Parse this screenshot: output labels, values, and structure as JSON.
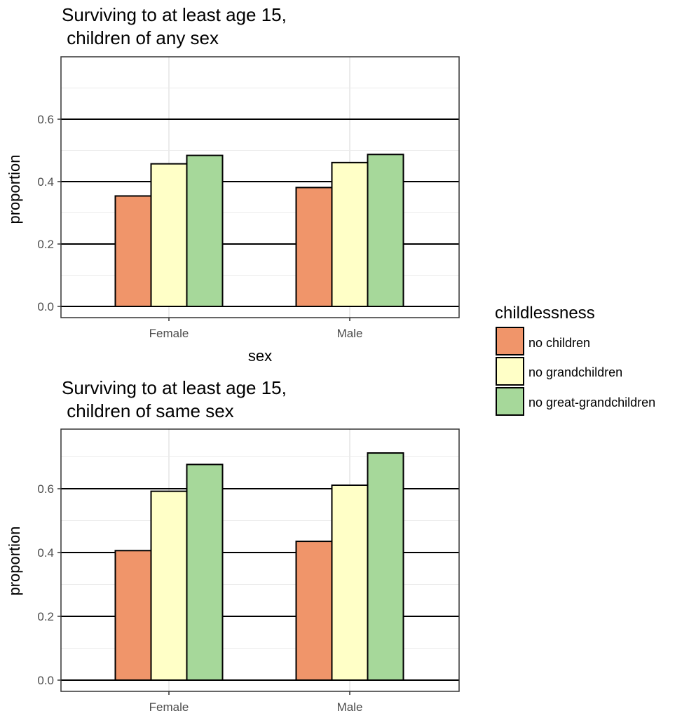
{
  "chart_data": [
    {
      "type": "bar",
      "title_lines": [
        "Surviving to at least age 15,",
        " children of any sex"
      ],
      "xlabel": "sex",
      "ylabel": "proportion",
      "categories": [
        "Female",
        "Male"
      ],
      "ylim": [
        0,
        0.76
      ],
      "yticks": [
        0.0,
        0.2,
        0.4,
        0.6
      ],
      "ytick_labels": [
        "0.0",
        "0.2",
        "0.4",
        "0.6"
      ],
      "series": [
        {
          "name": "no children",
          "values": [
            0.354,
            0.381
          ]
        },
        {
          "name": "no grandchildren",
          "values": [
            0.457,
            0.461
          ]
        },
        {
          "name": "no great-grandchildren",
          "values": [
            0.484,
            0.487
          ]
        }
      ]
    },
    {
      "type": "bar",
      "title_lines": [
        "Surviving to at least age 15,",
        " children of same sex"
      ],
      "xlabel": "",
      "ylabel": "proportion",
      "categories": [
        "Female",
        "Male"
      ],
      "ylim": [
        0,
        0.76
      ],
      "yticks": [
        0.0,
        0.2,
        0.4,
        0.6
      ],
      "ytick_labels": [
        "0.0",
        "0.2",
        "0.4",
        "0.6"
      ],
      "series": [
        {
          "name": "no children",
          "values": [
            0.406,
            0.435
          ]
        },
        {
          "name": "no grandchildren",
          "values": [
            0.592,
            0.611
          ]
        },
        {
          "name": "no great-grandchildren",
          "values": [
            0.676,
            0.712
          ]
        }
      ]
    }
  ],
  "legend": {
    "title": "childlessness",
    "entries": [
      "no children",
      "no grandchildren",
      "no great-grandchildren"
    ]
  },
  "colors": {
    "series": [
      "#f0956a",
      "#ffffc7",
      "#a6d89a"
    ],
    "bar_outline": "#000000",
    "panel_border": "#333333",
    "major_grid": "#000000",
    "minor_grid": "#ebebeb",
    "vertical_grid": "#ebebeb"
  }
}
